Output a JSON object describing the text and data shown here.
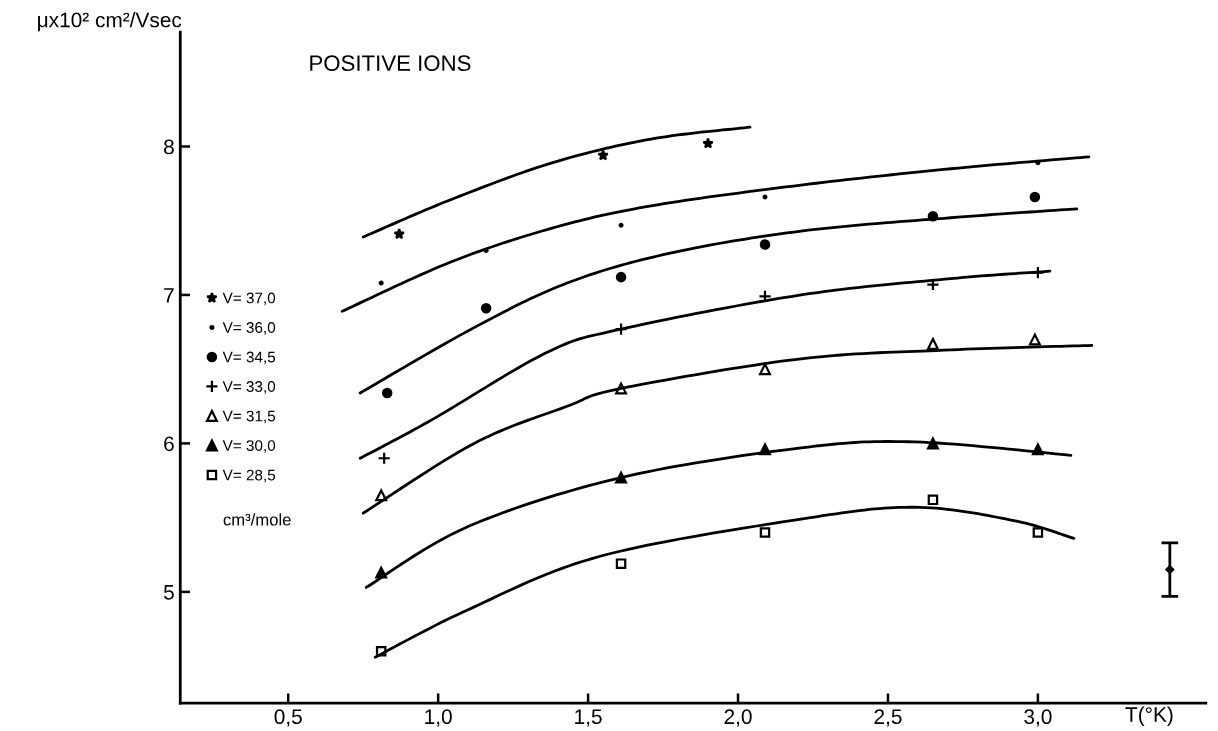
{
  "chart_data": {
    "type": "scatter",
    "title": "POSITIVE IONS",
    "xlabel": "T(°K)",
    "ylabel": "μx10² cm²/Vsec",
    "xlim": [
      0.14,
      3.56
    ],
    "ylim": [
      4.25,
      8.77
    ],
    "xticks": [
      {
        "value": 0.5,
        "label": "0,5"
      },
      {
        "value": 1.0,
        "label": "1,0"
      },
      {
        "value": 1.5,
        "label": "1,5"
      },
      {
        "value": 2.0,
        "label": "2,0"
      },
      {
        "value": 2.5,
        "label": "2,5"
      },
      {
        "value": 3.0,
        "label": "3,0"
      }
    ],
    "yticks": [
      5,
      6,
      7,
      8
    ],
    "grid": false,
    "legend": "left",
    "annotations": [
      "cm³/mole"
    ],
    "series": [
      {
        "name": "V= 37,0",
        "marker": "star",
        "color": "#000000",
        "x": [
          0.87,
          1.55,
          1.9
        ],
        "values": [
          7.41,
          7.94,
          8.02
        ]
      },
      {
        "name": "V= 36,0",
        "type": "scatter",
        "marker": "point",
        "color": "#000000",
        "x": [
          0.81,
          1.16,
          1.61,
          2.09,
          3.0
        ],
        "values": [
          7.08,
          7.3,
          7.47,
          7.66,
          7.89
        ]
      },
      {
        "name": "V= 34,5",
        "type": "scatter",
        "marker": "circle",
        "color": "#000000",
        "x": [
          0.83,
          1.16,
          1.61,
          2.09,
          2.65,
          2.99
        ],
        "values": [
          6.34,
          6.91,
          7.12,
          7.34,
          7.53,
          7.66
        ]
      },
      {
        "name": "V= 33,0",
        "type": "scatter",
        "marker": "cross",
        "color": "#000000",
        "x": [
          0.82,
          1.61,
          2.09,
          2.65,
          3.0
        ],
        "values": [
          5.9,
          6.77,
          6.99,
          7.07,
          7.15
        ]
      },
      {
        "name": "V= 31,5",
        "type": "scatter",
        "marker": "triangle-open",
        "color": "#000000",
        "x": [
          0.81,
          1.61,
          2.09,
          2.65,
          2.99
        ],
        "values": [
          5.65,
          6.37,
          6.5,
          6.67,
          6.7
        ]
      },
      {
        "name": "V= 30,0",
        "type": "scatter",
        "marker": "triangle",
        "color": "#000000",
        "x": [
          0.81,
          1.61,
          2.09,
          2.65,
          3.0
        ],
        "values": [
          5.13,
          5.77,
          5.96,
          6.0,
          5.96
        ]
      },
      {
        "name": "V= 28,5",
        "type": "scatter",
        "marker": "square-open",
        "color": "#000000",
        "x": [
          0.81,
          1.61,
          2.09,
          2.65,
          3.0
        ],
        "values": [
          4.6,
          5.19,
          5.4,
          5.62,
          5.4
        ]
      },
      {
        "type": "line",
        "color": "#000000",
        "x": [
          0.75,
          1.04,
          1.38,
          1.71,
          2.04
        ],
        "values": [
          7.39,
          7.64,
          7.89,
          8.05,
          8.13
        ]
      },
      {
        "type": "line",
        "color": "#000000",
        "x": [
          0.68,
          1.04,
          1.38,
          1.71,
          2.21,
          2.71,
          3.17
        ],
        "values": [
          6.89,
          7.22,
          7.45,
          7.6,
          7.74,
          7.85,
          7.93
        ]
      },
      {
        "type": "line",
        "color": "#000000",
        "x": [
          0.74,
          1.12,
          1.43,
          1.77,
          2.21,
          2.71,
          3.13
        ],
        "values": [
          6.34,
          6.78,
          7.08,
          7.28,
          7.43,
          7.52,
          7.58
        ]
      },
      {
        "type": "line",
        "color": "#000000",
        "x": [
          0.74,
          0.98,
          1.36,
          1.61,
          2.21,
          2.71,
          3.04
        ],
        "values": [
          5.9,
          6.16,
          6.61,
          6.77,
          7.0,
          7.11,
          7.16
        ]
      },
      {
        "type": "line",
        "color": "#000000",
        "x": [
          0.75,
          1.12,
          1.43,
          1.61,
          2.21,
          2.71,
          3.18
        ],
        "values": [
          5.53,
          6.0,
          6.25,
          6.37,
          6.57,
          6.63,
          6.66
        ]
      },
      {
        "type": "line",
        "color": "#000000",
        "x": [
          0.76,
          1.1,
          1.61,
          2.21,
          2.59,
          3.11
        ],
        "values": [
          5.03,
          5.44,
          5.77,
          5.97,
          6.01,
          5.92
        ]
      },
      {
        "type": "line",
        "color": "#000000",
        "x": [
          0.79,
          1.1,
          1.54,
          2.21,
          2.59,
          2.92,
          3.12
        ],
        "values": [
          4.56,
          4.88,
          5.24,
          5.49,
          5.57,
          5.48,
          5.36
        ]
      },
      {
        "type": "scatter",
        "marker": "diamond",
        "color": "#000000",
        "x": [
          3.44
        ],
        "values": [
          5.15
        ],
        "errors": [
          [
            4.97,
            5.33
          ]
        ]
      }
    ]
  }
}
